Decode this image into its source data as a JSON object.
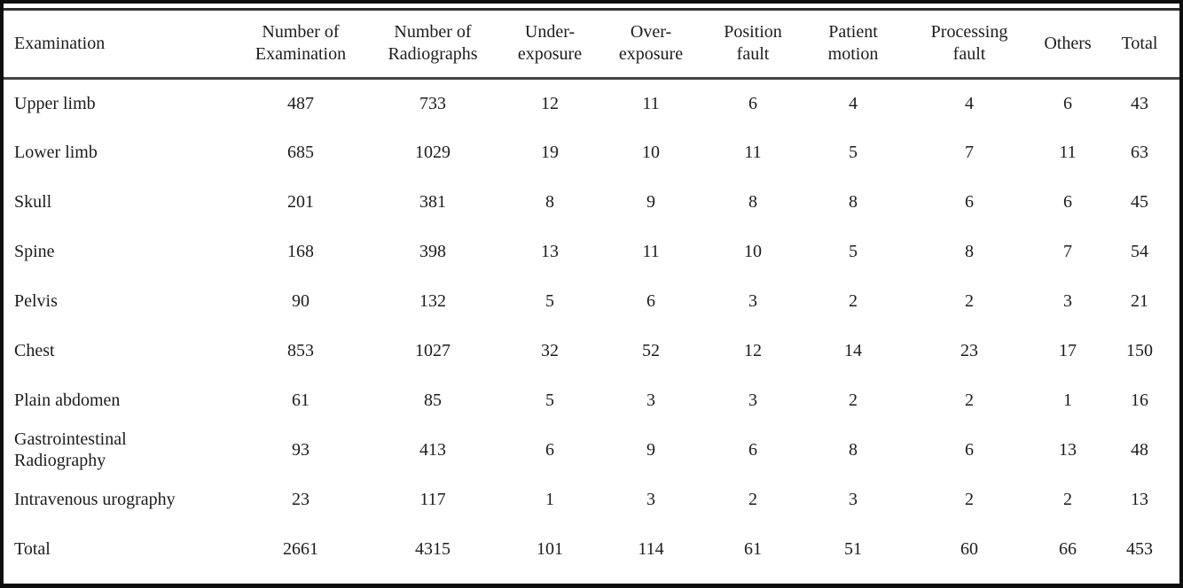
{
  "colors": {
    "frame_border": "#0e0e0e",
    "top_rule": "#2e2e2e",
    "header_rule": "#444444",
    "text": "#1c1c1c",
    "background": "#ffffff"
  },
  "table": {
    "columns": [
      "Examination",
      "Number of\nExamination",
      "Number of\nRadiographs",
      "Under-\nexposure",
      "Over-\nexposure",
      "Position\nfault",
      "Patient\nmotion",
      "Processing\nfault",
      "Others",
      "Total"
    ],
    "rows": [
      {
        "label": "Upper limb",
        "values": [
          "487",
          "733",
          "12",
          "11",
          "6",
          "4",
          "4",
          "6",
          "43"
        ]
      },
      {
        "label": "Lower limb",
        "values": [
          "685",
          "1029",
          "19",
          "10",
          "11",
          "5",
          "7",
          "11",
          "63"
        ]
      },
      {
        "label": "Skull",
        "values": [
          "201",
          "381",
          "8",
          "9",
          "8",
          "8",
          "6",
          "6",
          "45"
        ]
      },
      {
        "label": "Spine",
        "values": [
          "168",
          "398",
          "13",
          "11",
          "10",
          "5",
          "8",
          "7",
          "54"
        ]
      },
      {
        "label": "Pelvis",
        "values": [
          "90",
          "132",
          "5",
          "6",
          "3",
          "2",
          "2",
          "3",
          "21"
        ]
      },
      {
        "label": "Chest",
        "values": [
          "853",
          "1027",
          "32",
          "52",
          "12",
          "14",
          "23",
          "17",
          "150"
        ]
      },
      {
        "label": "Plain abdomen",
        "values": [
          "61",
          "85",
          "5",
          "3",
          "3",
          "2",
          "2",
          "1",
          "16"
        ]
      },
      {
        "label": "Gastrointestinal\nRadiography",
        "values": [
          "93",
          "413",
          "6",
          "9",
          "6",
          "8",
          "6",
          "13",
          "48"
        ]
      },
      {
        "label": "Intravenous urography",
        "values": [
          "23",
          "117",
          "1",
          "3",
          "2",
          "3",
          "2",
          "2",
          "13"
        ]
      },
      {
        "label": "Total",
        "values": [
          "2661",
          "4315",
          "101",
          "114",
          "61",
          "51",
          "60",
          "66",
          "453"
        ]
      }
    ]
  }
}
